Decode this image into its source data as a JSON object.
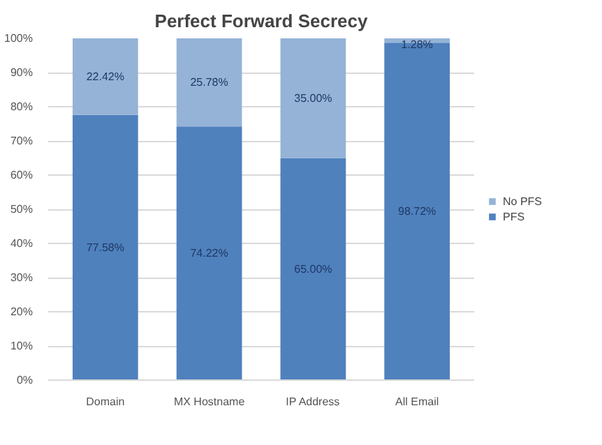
{
  "chart_data": {
    "type": "bar",
    "title": "Perfect Forward Secrecy",
    "stacked": true,
    "categories": [
      "Domain",
      "MX Hostname",
      "IP Address",
      "All Email"
    ],
    "series": [
      {
        "name": "PFS",
        "color": "#4f81bd",
        "values": [
          77.58,
          74.22,
          65.0,
          98.72
        ],
        "value_labels": [
          "77.58%",
          "74.22%",
          "65.00%",
          "98.72%"
        ]
      },
      {
        "name": "No PFS",
        "color": "#95b3d7",
        "values": [
          22.42,
          25.78,
          35.0,
          1.28
        ],
        "value_labels": [
          "22.42%",
          "25.78%",
          "35.00%",
          "1.28%"
        ]
      }
    ],
    "ylim": [
      0,
      100
    ],
    "yticks": [
      {
        "value": 0,
        "label": "0%"
      },
      {
        "value": 10,
        "label": "10%"
      },
      {
        "value": 20,
        "label": "20%"
      },
      {
        "value": 30,
        "label": "30%"
      },
      {
        "value": 40,
        "label": "40%"
      },
      {
        "value": 50,
        "label": "50%"
      },
      {
        "value": 60,
        "label": "60%"
      },
      {
        "value": 70,
        "label": "70%"
      },
      {
        "value": 80,
        "label": "80%"
      },
      {
        "value": 90,
        "label": "90%"
      },
      {
        "value": 100,
        "label": "100%"
      }
    ],
    "grid": "y",
    "legend": "right"
  }
}
